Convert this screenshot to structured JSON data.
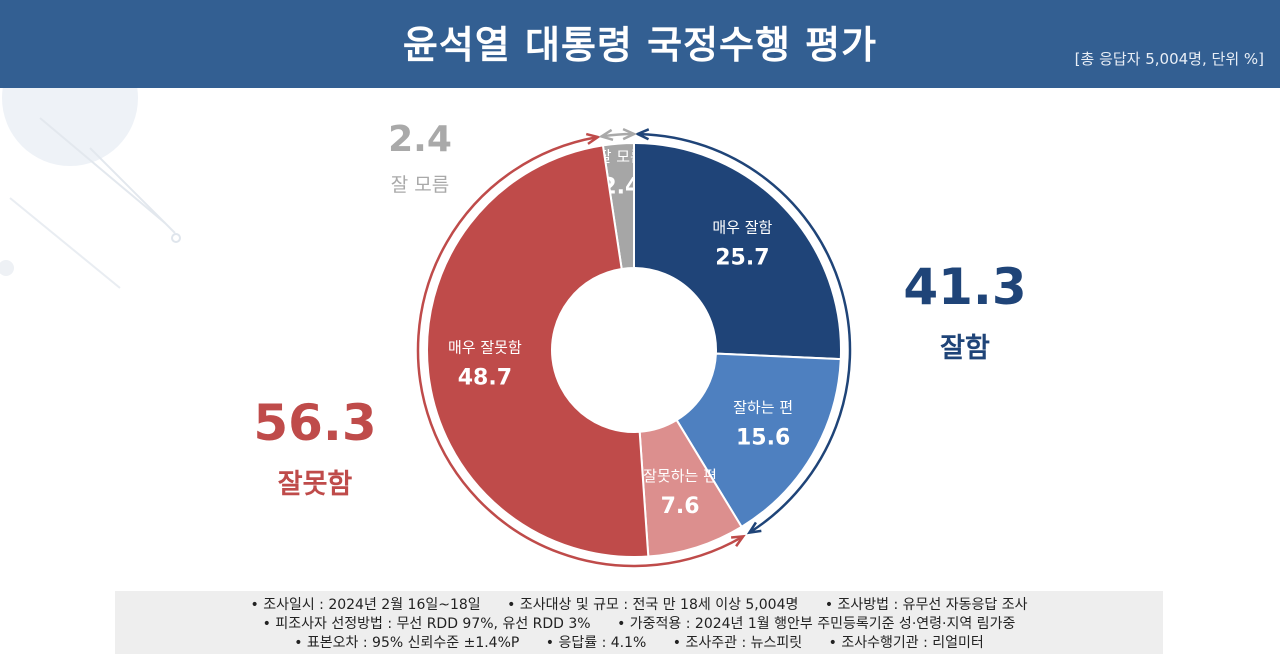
{
  "header": {
    "title": "윤석열 대통령 국정수행 평가",
    "unit_note": "[총 응답자 5,004명, 단위 %]"
  },
  "summary": {
    "good": {
      "value": "41.3",
      "label": "잘함",
      "color": "#1f4478"
    },
    "bad": {
      "value": "56.3",
      "label": "잘못함",
      "color": "#bf4b4a"
    },
    "dont_know": {
      "value": "2.4",
      "label": "잘 모름",
      "color": "#a9a9a9"
    }
  },
  "chart_data": {
    "type": "pie",
    "donut": true,
    "slices": [
      {
        "label": "잘 모름",
        "value": 2.4,
        "color": "#a6a6a6"
      },
      {
        "label": "매우 잘함",
        "value": 25.7,
        "color": "#1f4478"
      },
      {
        "label": "잘하는 편",
        "value": 15.6,
        "color": "#4e80c0"
      },
      {
        "label": "잘못하는 편",
        "value": 7.6,
        "color": "#dc8f8e"
      },
      {
        "label": "매우 잘못함",
        "value": 48.7,
        "color": "#bf4b4a"
      }
    ]
  },
  "footer": {
    "lines": [
      [
        "조사일시 : 2024년 2월 16일~18일",
        "조사대상 및 규모 : 전국 만 18세 이상 5,004명",
        "조사방법 : 유무선 자동응답 조사"
      ],
      [
        "피조사자 선정방법 : 무선 RDD 97%, 유선 RDD 3%",
        "가중적용 : 2024년 1월 행안부 주민등록기준 성·연령·지역 림가중"
      ],
      [
        "표본오차 : 95% 신뢰수준 ±1.4%P",
        "응답률 : 4.1%",
        "조사주관 : 뉴스피릿",
        "조사수행기관 : 리얼미터"
      ]
    ]
  }
}
